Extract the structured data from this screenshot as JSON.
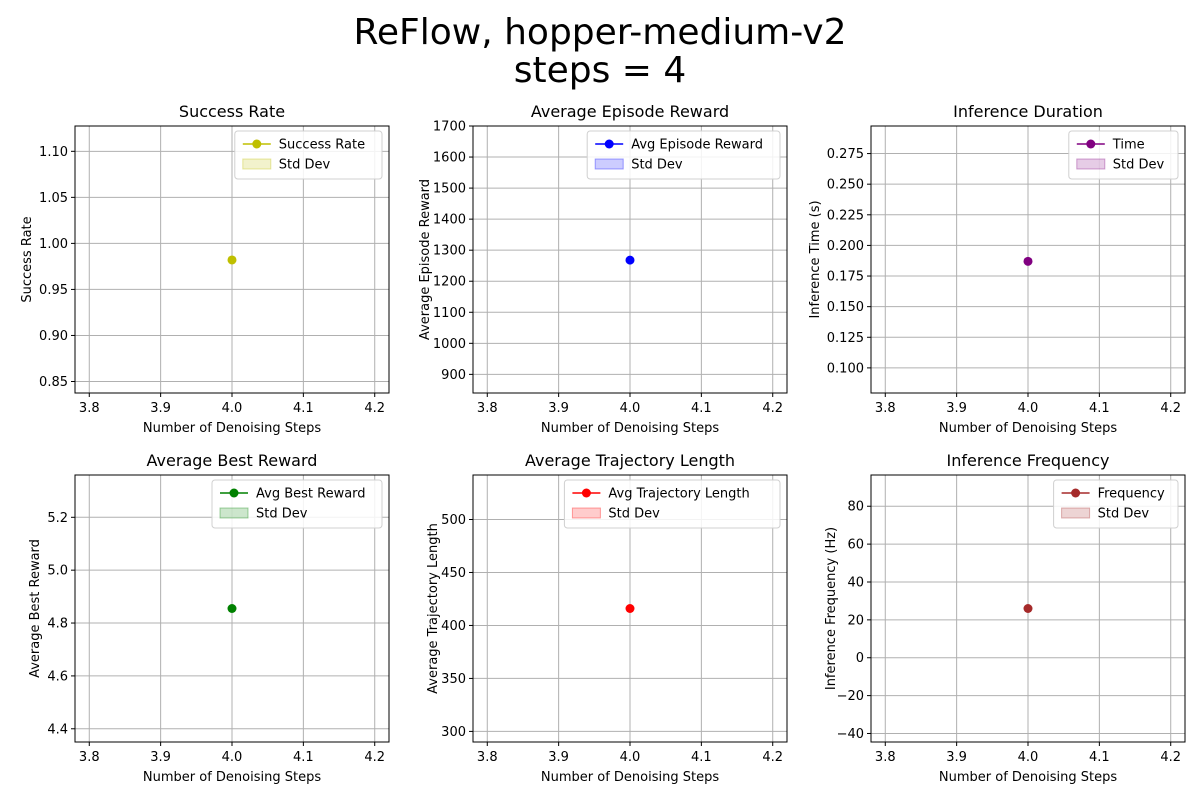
{
  "figure": {
    "title_line1": "ReFlow, hopper-medium-v2",
    "title_line2": "steps = 4"
  },
  "chart_data": [
    {
      "type": "line",
      "title": "Success Rate",
      "xlabel": "Number of Denoising Steps",
      "ylabel": "Success Rate",
      "xlim": [
        3.78,
        4.22
      ],
      "ylim": [
        0.8375,
        1.1275
      ],
      "xticks": [
        3.8,
        3.9,
        4.0,
        4.1,
        4.2
      ],
      "xticklabels": [
        "3.8",
        "3.9",
        "4.0",
        "4.1",
        "4.2"
      ],
      "yticks": [
        0.85,
        0.9,
        0.95,
        1.0,
        1.05,
        1.1
      ],
      "yticklabels": [
        "0.85",
        "0.90",
        "0.95",
        "1.00",
        "1.05",
        "1.10"
      ],
      "x": [
        4.0
      ],
      "y": [
        0.982
      ],
      "color": "#bfbf00",
      "fill_alpha": 0.2,
      "legend": [
        "Success Rate",
        "Std Dev"
      ],
      "legend_loc": "upper right",
      "grid": true
    },
    {
      "type": "line",
      "title": "Average Episode Reward",
      "xlabel": "Number of Denoising Steps",
      "ylabel": "Average Episode Reward",
      "xlim": [
        3.78,
        4.22
      ],
      "ylim": [
        840,
        1700
      ],
      "xticks": [
        3.8,
        3.9,
        4.0,
        4.1,
        4.2
      ],
      "xticklabels": [
        "3.8",
        "3.9",
        "4.0",
        "4.1",
        "4.2"
      ],
      "yticks": [
        900,
        1000,
        1100,
        1200,
        1300,
        1400,
        1500,
        1600,
        1700
      ],
      "yticklabels": [
        "900",
        "1000",
        "1100",
        "1200",
        "1300",
        "1400",
        "1500",
        "1600",
        "1700"
      ],
      "x": [
        4.0
      ],
      "y": [
        1268
      ],
      "color": "#0000ff",
      "fill_alpha": 0.2,
      "legend": [
        "Avg Episode Reward",
        "Std Dev"
      ],
      "legend_loc": "upper right",
      "grid": true
    },
    {
      "type": "line",
      "title": "Inference Duration",
      "xlabel": "Number of Denoising Steps",
      "ylabel": "Inference Time (s)",
      "xlim": [
        3.78,
        4.22
      ],
      "ylim": [
        0.0795,
        0.2975
      ],
      "xticks": [
        3.8,
        3.9,
        4.0,
        4.1,
        4.2
      ],
      "xticklabels": [
        "3.8",
        "3.9",
        "4.0",
        "4.1",
        "4.2"
      ],
      "yticks": [
        0.1,
        0.125,
        0.15,
        0.175,
        0.2,
        0.225,
        0.25,
        0.275
      ],
      "yticklabels": [
        "0.100",
        "0.125",
        "0.150",
        "0.175",
        "0.200",
        "0.225",
        "0.250",
        "0.275"
      ],
      "x": [
        4.0
      ],
      "y": [
        0.187
      ],
      "color": "#800080",
      "fill_alpha": 0.2,
      "legend": [
        "Time",
        "Std Dev"
      ],
      "legend_loc": "upper right",
      "grid": true
    },
    {
      "type": "line",
      "title": "Average Best Reward",
      "xlabel": "Number of Denoising Steps",
      "ylabel": "Average Best Reward",
      "xlim": [
        3.78,
        4.22
      ],
      "ylim": [
        4.35,
        5.36
      ],
      "xticks": [
        3.8,
        3.9,
        4.0,
        4.1,
        4.2
      ],
      "xticklabels": [
        "3.8",
        "3.9",
        "4.0",
        "4.1",
        "4.2"
      ],
      "yticks": [
        4.4,
        4.6,
        4.8,
        5.0,
        5.2
      ],
      "yticklabels": [
        "4.4",
        "4.6",
        "4.8",
        "5.0",
        "5.2"
      ],
      "x": [
        4.0
      ],
      "y": [
        4.855
      ],
      "color": "#008000",
      "fill_alpha": 0.2,
      "legend": [
        "Avg Best Reward",
        "Std Dev"
      ],
      "legend_loc": "upper right",
      "grid": true
    },
    {
      "type": "line",
      "title": "Average Trajectory Length",
      "xlabel": "Number of Denoising Steps",
      "ylabel": "Average Trajectory Length",
      "xlim": [
        3.78,
        4.22
      ],
      "ylim": [
        290,
        542
      ],
      "xticks": [
        3.8,
        3.9,
        4.0,
        4.1,
        4.2
      ],
      "xticklabels": [
        "3.8",
        "3.9",
        "4.0",
        "4.1",
        "4.2"
      ],
      "yticks": [
        300,
        350,
        400,
        450,
        500
      ],
      "yticklabels": [
        "300",
        "350",
        "400",
        "450",
        "500"
      ],
      "x": [
        4.0
      ],
      "y": [
        416
      ],
      "color": "#ff0000",
      "fill_alpha": 0.2,
      "legend": [
        "Avg Trajectory Length",
        "Std Dev"
      ],
      "legend_loc": "upper right",
      "grid": true
    },
    {
      "type": "line",
      "title": "Inference Frequency",
      "xlabel": "Number of Denoising Steps",
      "ylabel": "Inference Frequency (Hz)",
      "xlim": [
        3.78,
        4.22
      ],
      "ylim": [
        -44.5,
        96.5
      ],
      "xticks": [
        3.8,
        3.9,
        4.0,
        4.1,
        4.2
      ],
      "xticklabels": [
        "3.8",
        "3.9",
        "4.0",
        "4.1",
        "4.2"
      ],
      "yticks": [
        -40,
        -20,
        0,
        20,
        40,
        60,
        80
      ],
      "yticklabels": [
        "−40",
        "−20",
        "0",
        "20",
        "40",
        "60",
        "80"
      ],
      "x": [
        4.0
      ],
      "y": [
        26
      ],
      "color": "#a52a2a",
      "fill_alpha": 0.2,
      "legend": [
        "Frequency",
        "Std Dev"
      ],
      "legend_loc": "upper right",
      "grid": true
    }
  ]
}
